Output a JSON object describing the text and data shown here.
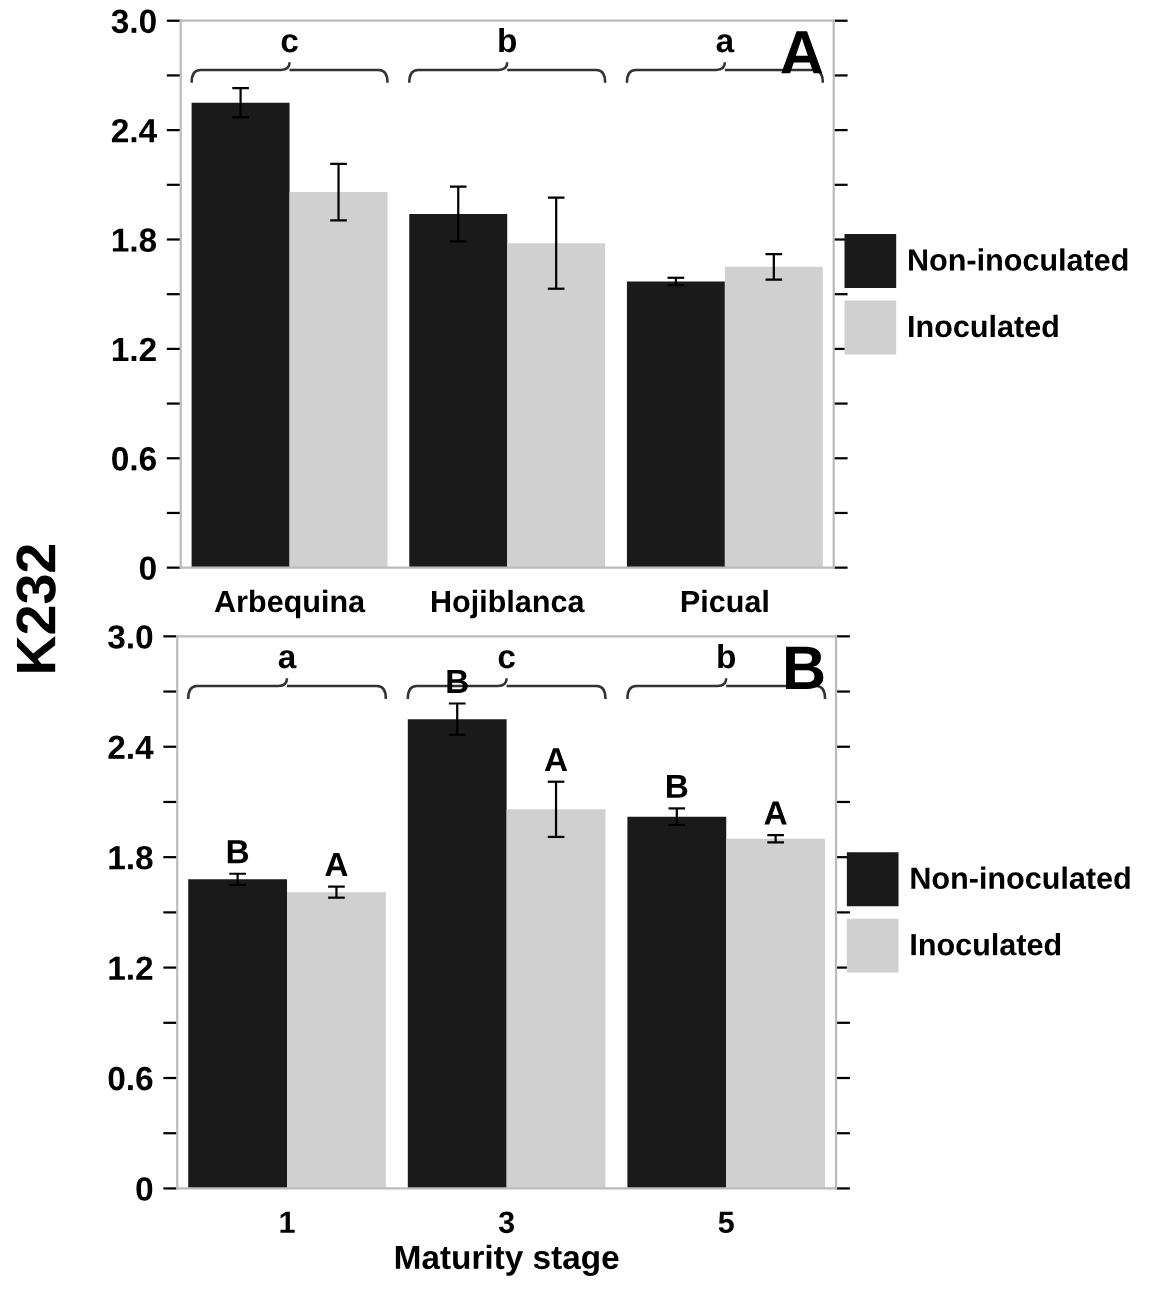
{
  "chart_data": [
    {
      "type": "bar",
      "title": "A",
      "ylabel": "K232",
      "categories": [
        "Arbequina",
        "Hojiblanca",
        "Picual"
      ],
      "series": [
        {
          "name": "Non-inoculated",
          "color": "#1a1a1a",
          "values": [
            2.55,
            1.94,
            1.57
          ],
          "errors": [
            0.08,
            0.15,
            0.02
          ]
        },
        {
          "name": "Inoculated",
          "color": "#d0d0d0",
          "values": [
            2.06,
            1.78,
            1.65
          ],
          "errors": [
            0.155,
            0.25,
            0.07
          ]
        }
      ],
      "ylim": [
        0,
        3.0
      ],
      "yticks": [
        0,
        {
          "value": 0.3,
          "label": null
        },
        {
          "value": 0.6,
          "label": "0.6"
        },
        {
          "value": 0.9,
          "label": null
        },
        {
          "value": 1.2,
          "label": "1.2"
        },
        {
          "value": 1.5,
          "label": null
        },
        {
          "value": 1.8,
          "label": "1.8"
        },
        {
          "value": 2.1,
          "label": null
        },
        {
          "value": 2.4,
          "label": "2.4"
        },
        {
          "value": 2.7,
          "label": null
        },
        {
          "value": 3.0,
          "label": "3.0"
        }
      ],
      "annotations": [
        "c",
        "b",
        "a"
      ],
      "legend": "right",
      "grid": false
    },
    {
      "type": "bar",
      "title": "B",
      "xlabel": "Maturity stage",
      "categories": [
        "1",
        "3",
        "5"
      ],
      "series": [
        {
          "name": "Non-inoculated",
          "color": "#1a1a1a",
          "values": [
            1.68,
            2.55,
            2.02
          ],
          "errors": [
            0.03,
            0.085,
            0.045
          ],
          "value_labels": [
            "B",
            "B",
            "B"
          ]
        },
        {
          "name": "Inoculated",
          "color": "#d0d0d0",
          "values": [
            1.61,
            2.06,
            1.9
          ],
          "errors": [
            0.03,
            0.15,
            0.02
          ],
          "value_labels": [
            "A",
            "A",
            "A"
          ]
        }
      ],
      "ylim": [
        0,
        3.0
      ],
      "yticks": [
        0,
        {
          "value": 0.3,
          "label": null
        },
        {
          "value": 0.6,
          "label": "0.6"
        },
        {
          "value": 0.9,
          "label": null
        },
        {
          "value": 1.2,
          "label": "1.2"
        },
        {
          "value": 1.5,
          "label": null
        },
        {
          "value": 1.8,
          "label": "1.8"
        },
        {
          "value": 2.1,
          "label": null
        },
        {
          "value": 2.4,
          "label": "2.4"
        },
        {
          "value": 2.7,
          "label": null
        },
        {
          "value": 3.0,
          "label": "3.0"
        }
      ],
      "annotations": [
        "a",
        "c",
        "b"
      ],
      "legend": "right",
      "grid": false
    }
  ]
}
